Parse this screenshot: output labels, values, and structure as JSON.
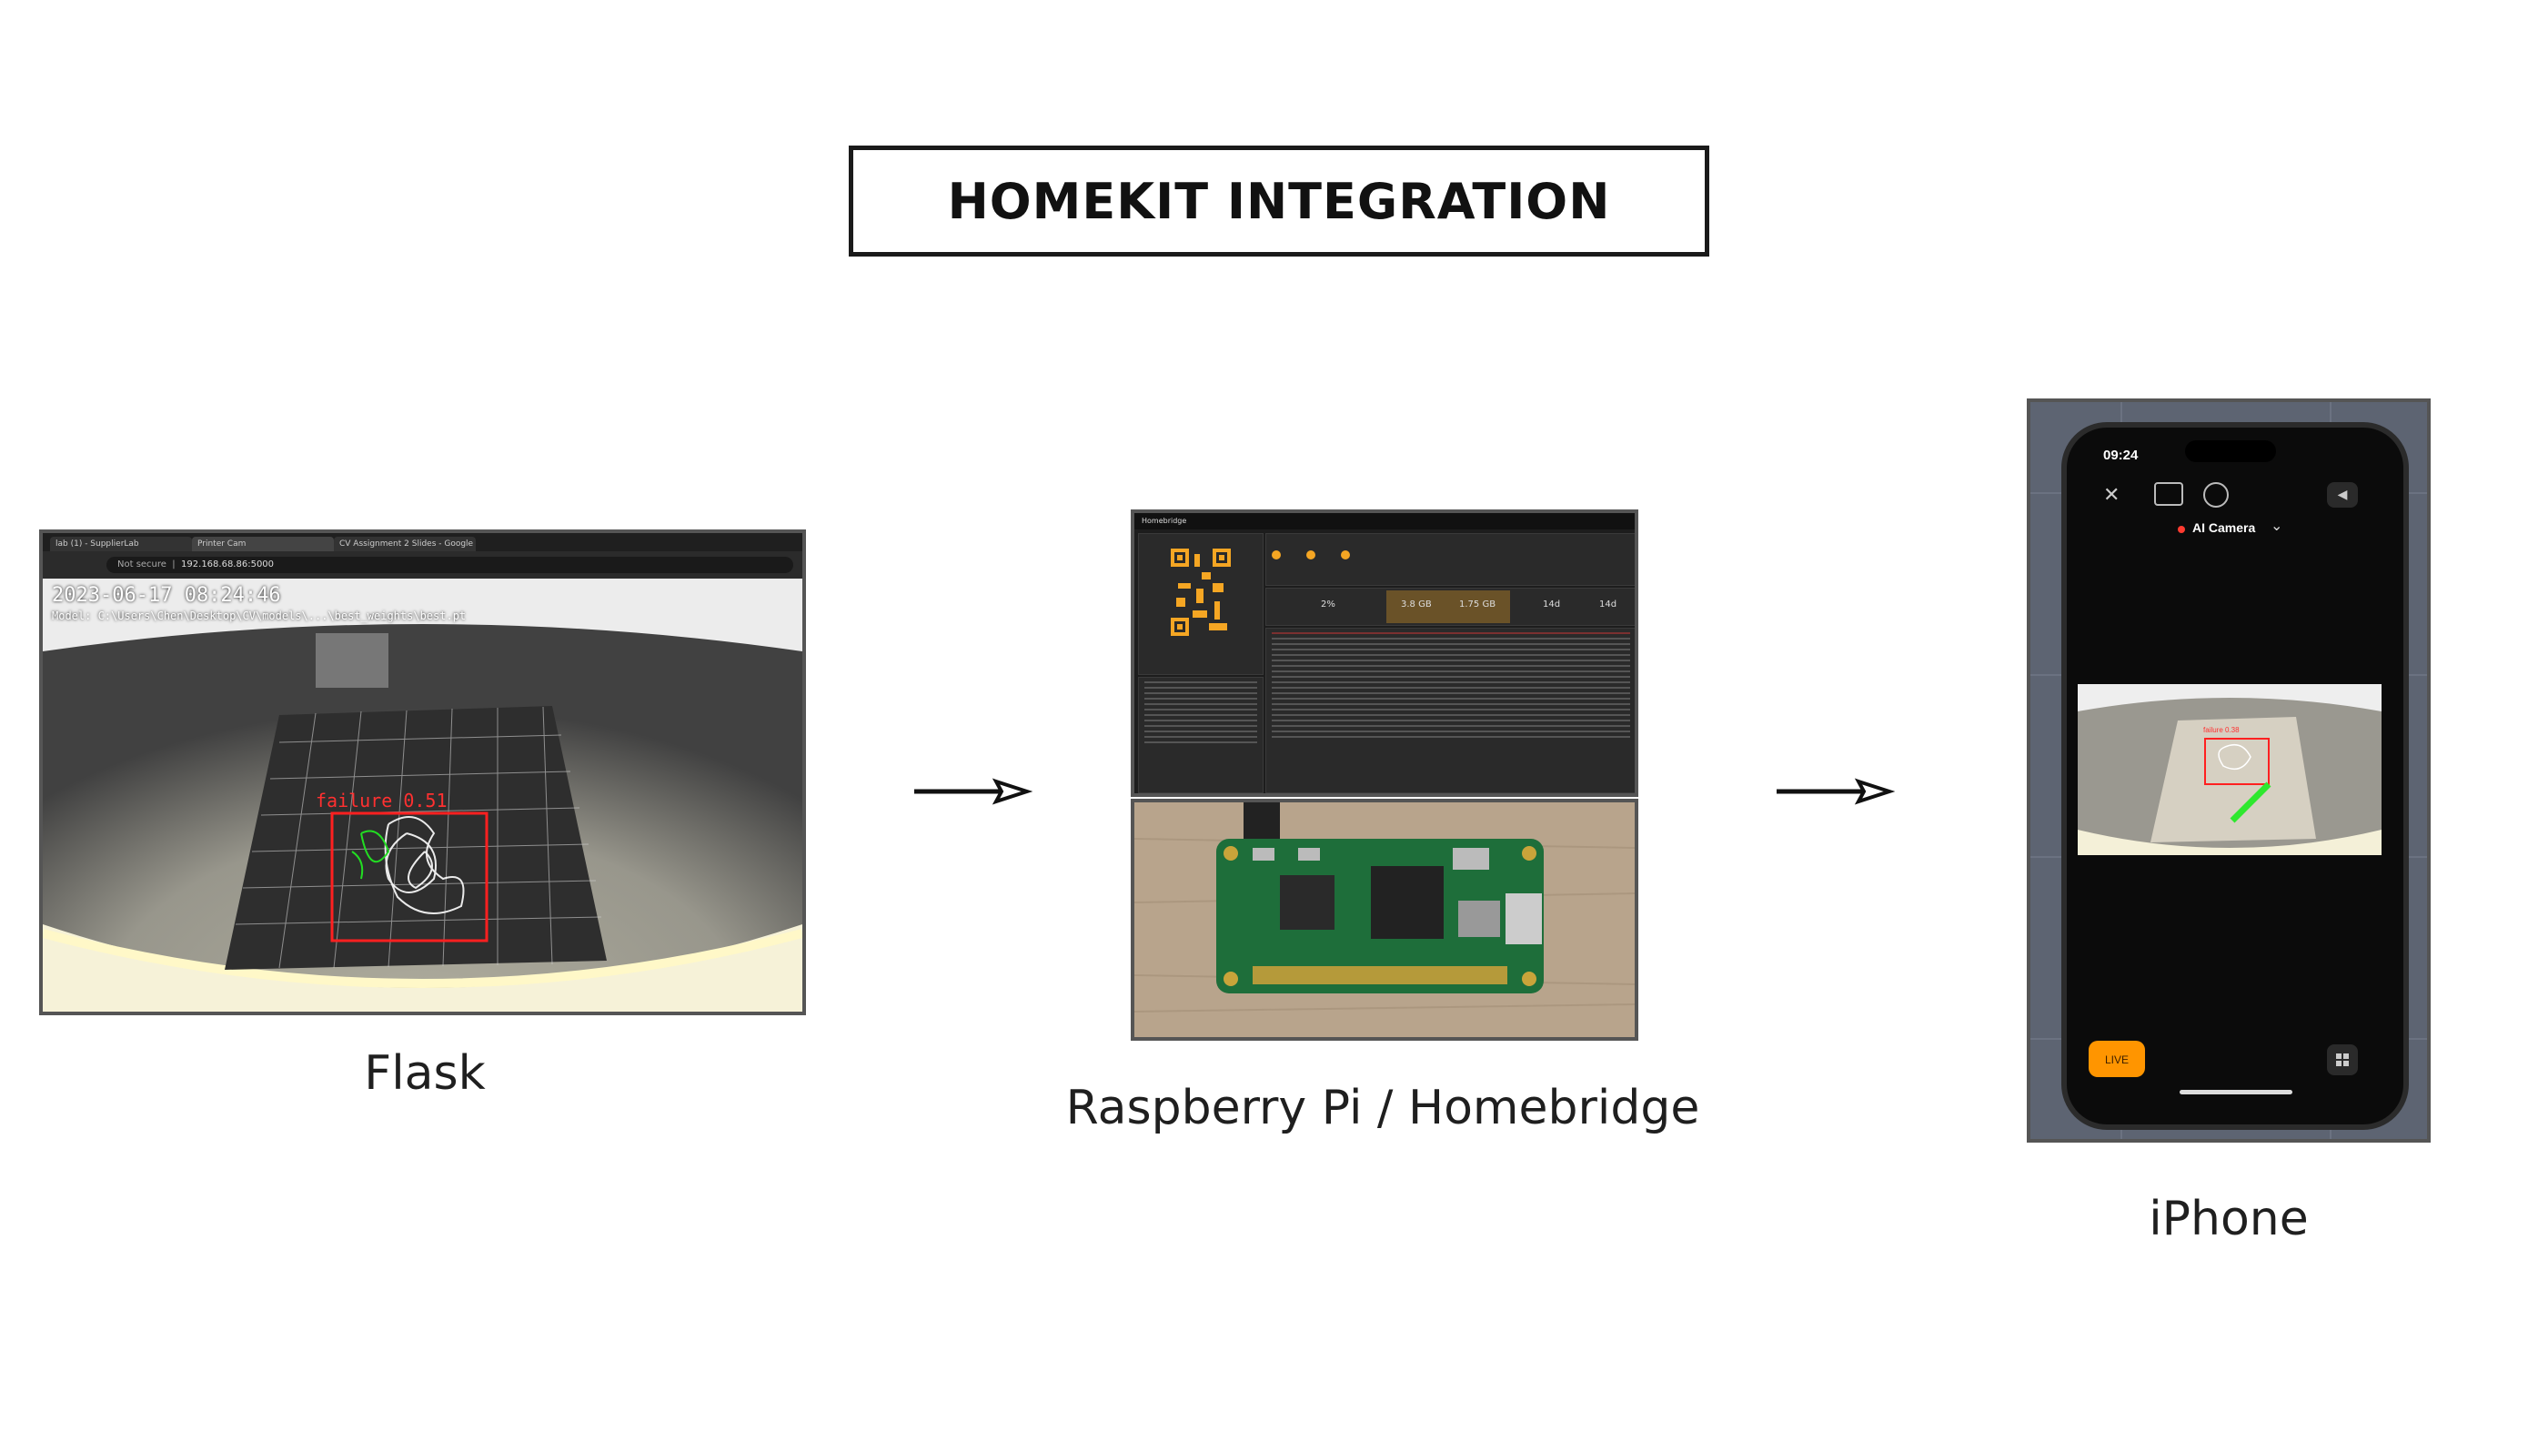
{
  "title": "HOMEKIT INTEGRATION",
  "nodes": [
    {
      "id": "flask",
      "label": "Flask"
    },
    {
      "id": "pi",
      "label": "Raspberry Pi / Homebridge"
    },
    {
      "id": "iphone",
      "label": "iPhone"
    }
  ],
  "edges": [
    {
      "from": "flask",
      "to": "pi"
    },
    {
      "from": "pi",
      "to": "iphone"
    }
  ],
  "flask_screenshot": {
    "tabs": [
      "lab (1) - SupplierLab",
      "Printer Cam",
      "CV Assignment 2 Slides - Google"
    ],
    "url_warning": "Not secure",
    "url": "192.168.68.86:5000",
    "timestamp": "2023-06-17 08:24:46",
    "model_path": "Model: C:\\Users\\Chen\\Desktop\\CV\\models\\...\\best_weights\\best.pt",
    "detection_label": "failure 0.51",
    "detection_color": "#ff2020"
  },
  "homebridge_screenshot": {
    "app_name": "Homebridge",
    "stats": [
      "2%",
      "3.8 GB",
      "1.75 GB",
      "14d",
      "14d"
    ],
    "accent": "#f5a623"
  },
  "iphone_screenshot": {
    "time": "09:24",
    "camera_name": "AI Camera",
    "detection_label": "failure 0.38",
    "live_label": "LIVE",
    "live_color": "#ff9500"
  }
}
